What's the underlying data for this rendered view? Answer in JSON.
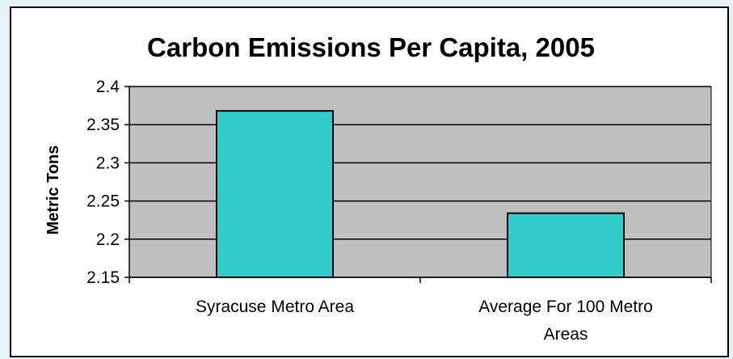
{
  "chart_data": {
    "type": "bar",
    "title": "Carbon Emissions Per Capita, 2005",
    "xlabel": "",
    "ylabel": "Metric Tons",
    "categories": [
      "Syracuse Metro Area",
      "Average For 100 Metro Areas"
    ],
    "category_lines": [
      [
        "Syracuse Metro Area"
      ],
      [
        "Average For 100 Metro",
        "Areas"
      ]
    ],
    "values": [
      2.368,
      2.234
    ],
    "ylim": [
      2.15,
      2.4
    ],
    "yticks": [
      "2.4",
      "2.35",
      "2.3",
      "2.25",
      "2.2",
      "2.15"
    ],
    "grid": true,
    "legend": "none",
    "colors": {
      "bar": "#33cccc",
      "plot_background": "#c0c0c0",
      "page_background": "#e6f2f2"
    }
  }
}
